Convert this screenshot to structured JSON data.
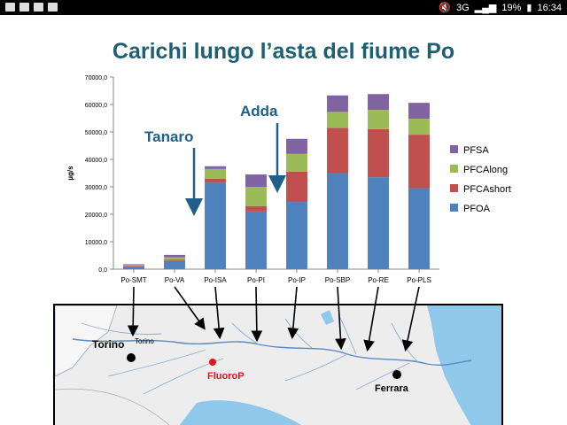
{
  "statusbar": {
    "battery": "19%",
    "time": "16:34",
    "network": "3G"
  },
  "slide": {
    "title": "Carichi lungo l’asta del fiume Po",
    "annotations": [
      "Tanaro",
      "Adda"
    ]
  },
  "colors": {
    "title": "#1f5f73",
    "annotation": "#1f5f8a",
    "PFOA": "#4f81bd",
    "PFCAshort": "#c0504d",
    "PFCAlong": "#9bbb59",
    "PFSA": "#8064a2"
  },
  "chart_data": {
    "type": "bar",
    "stacked": true,
    "categories": [
      "Po-SMT",
      "Po-VA",
      "Po-ISA",
      "Po-PI",
      "Po-IP",
      "Po-SBP",
      "Po-RE",
      "Po-PLS"
    ],
    "series": [
      {
        "name": "PFOA",
        "values": [
          1000,
          3000,
          31500,
          21000,
          24500,
          35000,
          33500,
          29500
        ]
      },
      {
        "name": "PFCAshort",
        "values": [
          200,
          500,
          1500,
          2000,
          11000,
          16500,
          17500,
          19500
        ]
      },
      {
        "name": "PFCAlong",
        "values": [
          300,
          800,
          3500,
          7000,
          6500,
          5800,
          7000,
          5800
        ]
      },
      {
        "name": "PFSA",
        "values": [
          300,
          900,
          1000,
          4500,
          5500,
          6000,
          5800,
          5800
        ]
      }
    ],
    "ylabel": "µg/s",
    "xlabel": "",
    "ylim": [
      0,
      70000
    ],
    "yticks": [
      "0,0",
      "10000,0",
      "20000,0",
      "30000,0",
      "40000,0",
      "50000,0",
      "60000,0",
      "70000,0"
    ],
    "legend_position": "right",
    "legend_order": [
      "PFSA",
      "PFCAlong",
      "PFCAshort",
      "PFOA"
    ],
    "grid": false
  },
  "map": {
    "labels": {
      "torino": "Torino",
      "torino_small": "Torino",
      "fluorop": "FluoroP",
      "ferrara": "Ferrara"
    }
  }
}
